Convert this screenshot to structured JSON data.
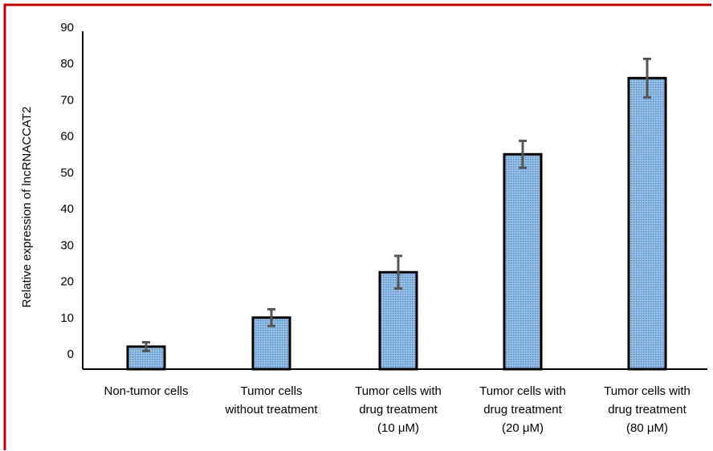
{
  "chart_data": {
    "type": "bar",
    "title": "",
    "xlabel": "",
    "ylabel": "Relative expression of lncRNACCAT2",
    "ylim": [
      0,
      90
    ],
    "yticks": [
      0,
      10,
      20,
      30,
      40,
      50,
      60,
      70,
      80,
      90
    ],
    "grid": false,
    "legend": "none",
    "categories": [
      [
        "Non-tumor cells"
      ],
      [
        "Tumor cells",
        "without treatment"
      ],
      [
        "Tumor cells with",
        "drug treatment",
        "(10 μM)"
      ],
      [
        "Tumor cells with",
        "drug treatment",
        "(20 μM)"
      ],
      [
        "Tumor cells with",
        "drug treatment",
        "(80 μM)"
      ]
    ],
    "values": [
      2,
      10,
      22.5,
      55,
      76
    ],
    "errors": [
      1.2,
      2.3,
      4.5,
      3.7,
      5.3
    ],
    "colors": {
      "bar_fill": "#9cc3e6",
      "bar_dots": "#4a86c5",
      "bar_stroke": "#000000",
      "error_bar": "#555555",
      "frame": "#c00000"
    }
  }
}
